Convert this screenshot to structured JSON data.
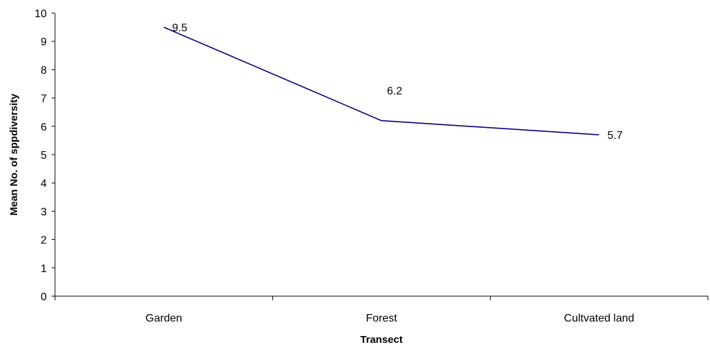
{
  "chart_data": {
    "type": "line",
    "categories": [
      "Garden",
      "Forest",
      "Cultvated land"
    ],
    "series": [
      {
        "values": [
          9.5,
          6.2,
          5.7
        ],
        "color": "#000080"
      }
    ],
    "data_labels": [
      "9.5",
      "6.2",
      "5.7"
    ],
    "xlabel": "Transect",
    "ylabel": "Mean No. of sppdiversity",
    "ylim": [
      0,
      10
    ],
    "yticks": [
      0,
      1,
      2,
      3,
      4,
      5,
      6,
      7,
      8,
      9,
      10
    ],
    "grid": false,
    "legend": "none"
  }
}
